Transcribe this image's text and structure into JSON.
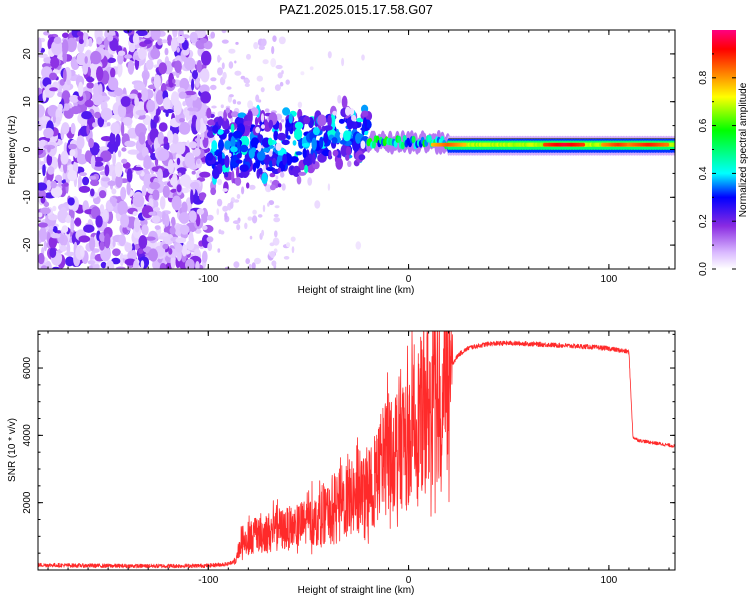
{
  "title": "PAZ1.2025.015.17.58.G07",
  "chart_data": [
    {
      "type": "heatmap",
      "name": "spectrogram",
      "xlabel": "Height of straight line (km)",
      "ylabel": "Frequency (Hz)",
      "xlim": [
        -185,
        133
      ],
      "ylim": [
        -25,
        25
      ],
      "xticks": [
        -100,
        0,
        100
      ],
      "yticks": [
        -20,
        -10,
        0,
        10,
        20
      ],
      "colorbar": {
        "label": "Normalized spectral amplitude",
        "range": [
          0.0,
          1.0
        ],
        "ticks": [
          0.0,
          0.2,
          0.4,
          0.6,
          0.8
        ],
        "colormap": [
          "#ffffff",
          "#d9b8ff",
          "#8a2be2",
          "#0000ff",
          "#00ffff",
          "#00ff00",
          "#ffff00",
          "#ff8000",
          "#ff0000",
          "#ff0080"
        ]
      },
      "regions": [
        {
          "x_range": [
            -185,
            -100
          ],
          "freq_range": [
            -25,
            25
          ],
          "amplitude": 0.05,
          "pattern": "diffuse noise"
        },
        {
          "x_range": [
            -100,
            -20
          ],
          "freq_range": [
            -12,
            12
          ],
          "amplitude": 0.25,
          "pattern": "scattered blobs"
        },
        {
          "x_range": [
            -20,
            20
          ],
          "freq_center": 1.5,
          "freq_halfwidth": 1.5,
          "amplitude": 0.5
        },
        {
          "x_range": [
            20,
            133
          ],
          "freq_center": 0.8,
          "freq_halfwidth": 1.2,
          "amplitude": 0.7,
          "peak_amplitude": 0.95
        }
      ]
    },
    {
      "type": "line",
      "name": "snr",
      "xlabel": "Height of straight line (km)",
      "ylabel": "SNR (10 * v/v)",
      "xlim": [
        -185,
        133
      ],
      "ylim": [
        0,
        7100
      ],
      "xticks": [
        -100,
        0,
        100
      ],
      "yticks": [
        2000,
        4000,
        6000
      ],
      "series": [
        {
          "color": "#ff2a2a",
          "x": [
            -185,
            -160,
            -140,
            -120,
            -100,
            -90,
            -86,
            -84,
            -80,
            -70,
            -60,
            -50,
            -40,
            -30,
            -20,
            -15,
            -10,
            -5,
            0,
            5,
            10,
            15,
            20,
            22,
            25,
            30,
            40,
            50,
            60,
            70,
            80,
            90,
            100,
            110,
            112,
            115,
            120,
            133
          ],
          "y": [
            150,
            130,
            120,
            120,
            130,
            180,
            300,
            900,
            1000,
            1200,
            1300,
            1500,
            1800,
            2200,
            2500,
            3200,
            3700,
            4000,
            4200,
            4700,
            5200,
            5700,
            6050,
            6150,
            6400,
            6600,
            6720,
            6740,
            6720,
            6690,
            6660,
            6630,
            6580,
            6480,
            3950,
            3850,
            3800,
            3680
          ]
        }
      ]
    }
  ]
}
